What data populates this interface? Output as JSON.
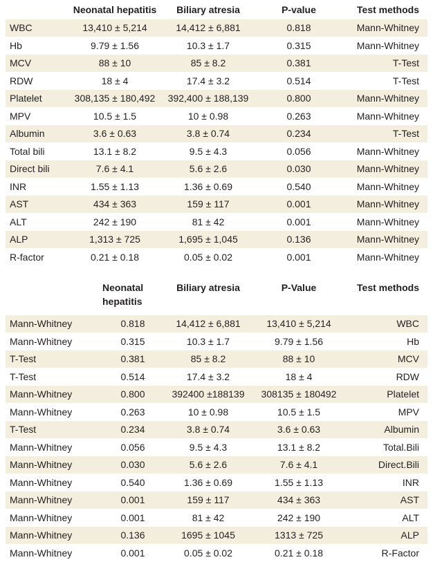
{
  "table1": {
    "headers": [
      "",
      "Neonatal hepatitis",
      "Biliary atresia",
      "P-value",
      "Test methods"
    ],
    "rows": [
      [
        "WBC",
        "13,410 ± 5,214",
        "14,412 ± 6,881",
        "0.818",
        "Mann-Whitney"
      ],
      [
        "Hb",
        "9.79 ± 1.56",
        "10.3 ± 1.7",
        "0.315",
        "Mann-Whitney"
      ],
      [
        "MCV",
        "88 ± 10",
        "85 ± 8.2",
        "0.381",
        "T-Test"
      ],
      [
        "RDW",
        "18 ± 4",
        "17.4 ± 3.2",
        "0.514",
        "T-Test"
      ],
      [
        "Platelet",
        "308,135 ± 180,492",
        "392,400 ± 188,139",
        "0.800",
        "Mann-Whitney"
      ],
      [
        "MPV",
        "10.5 ± 1.5",
        "10 ± 0.98",
        "0.263",
        "Mann-Whitney"
      ],
      [
        "Albumin",
        "3.6 ± 0.63",
        "3.8 ± 0.74",
        "0.234",
        "T-Test"
      ],
      [
        "Total bili",
        "13.1 ± 8.2",
        "9.5 ± 4.3",
        "0.056",
        "Mann-Whitney"
      ],
      [
        "Direct bili",
        "7.6 ± 4.1",
        "5.6 ± 2.6",
        "0.030",
        "Mann-Whitney"
      ],
      [
        "INR",
        "1.55 ± 1.13",
        "1.36 ± 0.69",
        "0.540",
        "Mann-Whitney"
      ],
      [
        "AST",
        "434 ± 363",
        "159 ± 117",
        "0.001",
        "Mann-Whitney"
      ],
      [
        "ALT",
        "242 ± 190",
        "81 ± 42",
        "0.001",
        "Mann-Whitney"
      ],
      [
        "ALP",
        "1,313 ± 725",
        "1,695 ± 1,045",
        "0.136",
        "Mann-Whitney"
      ],
      [
        "R-factor",
        "0.21 ± 0.18",
        "0.05 ± 0.02",
        "0.001",
        "Mann-Whitney"
      ]
    ]
  },
  "table2": {
    "headers": [
      "",
      "Neonatal hepatitis",
      "Biliary atresia",
      "P-Value",
      "Test methods"
    ],
    "rows": [
      [
        "Mann-Whitney",
        "0.818",
        "14,412 ± 6,881",
        "13,410 ± 5,214",
        "WBC"
      ],
      [
        "Mann-Whitney",
        "0.315",
        "10.3 ± 1.7",
        "9.79 ± 1.56",
        "Hb"
      ],
      [
        "T-Test",
        "0.381",
        "85 ± 8.2",
        "88 ± 10",
        "MCV"
      ],
      [
        "T-Test",
        "0.514",
        "17.4 ± 3.2",
        "18 ± 4",
        "RDW"
      ],
      [
        "Mann-Whitney",
        "0.800",
        "392400 ±188139",
        "308135 ± 180492",
        "Platelet"
      ],
      [
        "Mann-Whitney",
        "0.263",
        "10 ± 0.98",
        "10.5 ± 1.5",
        "MPV"
      ],
      [
        "T-Test",
        "0.234",
        "3.8 ± 0.74",
        "3.6 ± 0.63",
        "Albumin"
      ],
      [
        "Mann-Whitney",
        "0.056",
        "9.5 ± 4.3",
        "13.1 ± 8.2",
        "Total.Bili"
      ],
      [
        "Mann-Whitney",
        "0.030",
        "5.6 ± 2.6",
        "7.6 ± 4.1",
        "Direct.Bili"
      ],
      [
        "Mann-Whitney",
        "0.540",
        "1.36 ± 0.69",
        "1.55 ± 1.13",
        "INR"
      ],
      [
        "Mann-Whitney",
        "0.001",
        "159 ± 117",
        "434 ± 363",
        "AST"
      ],
      [
        "Mann-Whitney",
        "0.001",
        "81 ± 42",
        "242 ± 190",
        "ALT"
      ],
      [
        "Mann-Whitney",
        "0.136",
        "1695 ± 1045",
        "1313 ± 725",
        "ALP"
      ],
      [
        "Mann-Whitney",
        "0.001",
        "0.05 ± 0.02",
        "0.21 ± 0.18",
        "R-Factor"
      ]
    ]
  },
  "colors": {
    "row_band": "#f3eedd",
    "text": "#231f20"
  }
}
